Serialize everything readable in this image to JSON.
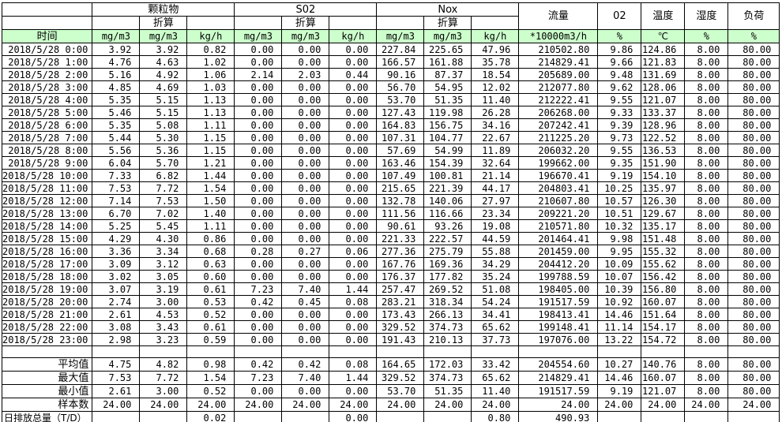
{
  "page": {
    "background_color": "#ffffff",
    "border_color": "#000000",
    "header_fill_color": "#ccffcc"
  },
  "header": {
    "time_label": "时间",
    "groups": [
      {
        "name": "颗粒物",
        "converted_label": "折算",
        "units": [
          "mg/m3",
          "mg/m3",
          "kg/h"
        ]
      },
      {
        "name": "S02",
        "converted_label": "折算",
        "units": [
          "mg/m3",
          "mg/m3",
          "kg/h"
        ]
      },
      {
        "name": "Nox",
        "converted_label": "折算",
        "units": [
          "mg/m3",
          "mg/m3",
          "kg/h"
        ]
      }
    ],
    "singles": [
      {
        "name": "流量",
        "unit": "*10000m3/h"
      },
      {
        "name": "02",
        "unit": "%"
      },
      {
        "name": "温度",
        "unit": "℃"
      },
      {
        "name": "湿度",
        "unit": "%"
      },
      {
        "name": "负荷",
        "unit": "%"
      }
    ]
  },
  "rows": [
    {
      "time": "2018/5/28 0:00",
      "values": [
        "3.92",
        "3.92",
        "0.82",
        "0.00",
        "0.00",
        "0.00",
        "227.84",
        "225.65",
        "47.96",
        "210502.80",
        "9.86",
        "124.86",
        "8.00",
        "80.00"
      ]
    },
    {
      "time": "2018/5/28 1:00",
      "values": [
        "4.76",
        "4.63",
        "1.02",
        "0.00",
        "0.00",
        "0.00",
        "166.57",
        "161.88",
        "35.78",
        "214829.41",
        "9.66",
        "121.83",
        "8.00",
        "80.00"
      ]
    },
    {
      "time": "2018/5/28 2:00",
      "values": [
        "5.16",
        "4.92",
        "1.06",
        "2.14",
        "2.03",
        "0.44",
        "90.16",
        "87.37",
        "18.54",
        "205689.00",
        "9.48",
        "131.69",
        "8.00",
        "80.00"
      ]
    },
    {
      "time": "2018/5/28 3:00",
      "values": [
        "4.85",
        "4.69",
        "1.03",
        "0.00",
        "0.00",
        "0.00",
        "56.70",
        "54.95",
        "12.02",
        "212077.80",
        "9.62",
        "128.06",
        "8.00",
        "80.00"
      ]
    },
    {
      "time": "2018/5/28 4:00",
      "values": [
        "5.35",
        "5.15",
        "1.13",
        "0.00",
        "0.00",
        "0.00",
        "53.70",
        "51.35",
        "11.40",
        "212222.41",
        "9.55",
        "121.07",
        "8.00",
        "80.00"
      ]
    },
    {
      "time": "2018/5/28 5:00",
      "values": [
        "5.46",
        "5.15",
        "1.13",
        "0.00",
        "0.00",
        "0.00",
        "127.43",
        "119.98",
        "26.28",
        "206268.00",
        "9.33",
        "133.37",
        "8.00",
        "80.00"
      ]
    },
    {
      "time": "2018/5/28 6:00",
      "values": [
        "5.35",
        "5.08",
        "1.11",
        "0.00",
        "0.00",
        "0.00",
        "164.83",
        "156.75",
        "34.16",
        "207242.41",
        "9.39",
        "128.96",
        "8.00",
        "80.00"
      ]
    },
    {
      "time": "2018/5/28 7:00",
      "values": [
        "5.44",
        "5.30",
        "1.15",
        "0.00",
        "0.00",
        "0.00",
        "107.31",
        "104.77",
        "22.67",
        "211225.20",
        "9.73",
        "122.52",
        "8.00",
        "80.00"
      ]
    },
    {
      "time": "2018/5/28 8:00",
      "values": [
        "5.56",
        "5.36",
        "1.15",
        "0.00",
        "0.00",
        "0.00",
        "57.69",
        "54.99",
        "11.89",
        "206032.20",
        "9.55",
        "136.53",
        "8.00",
        "80.00"
      ]
    },
    {
      "time": "2018/5/28 9:00",
      "values": [
        "6.04",
        "5.70",
        "1.21",
        "0.00",
        "0.00",
        "0.00",
        "163.46",
        "154.39",
        "32.64",
        "199662.00",
        "9.35",
        "151.90",
        "8.00",
        "80.00"
      ]
    },
    {
      "time": "2018/5/28 10:00",
      "values": [
        "7.33",
        "6.82",
        "1.44",
        "0.00",
        "0.00",
        "0.00",
        "107.49",
        "100.81",
        "21.14",
        "196670.41",
        "9.19",
        "154.10",
        "8.00",
        "80.00"
      ]
    },
    {
      "time": "2018/5/28 11:00",
      "values": [
        "7.53",
        "7.72",
        "1.54",
        "0.00",
        "0.00",
        "0.00",
        "215.65",
        "221.39",
        "44.17",
        "204803.41",
        "10.25",
        "135.97",
        "8.00",
        "80.00"
      ]
    },
    {
      "time": "2018/5/28 12:00",
      "values": [
        "7.14",
        "7.53",
        "1.50",
        "0.00",
        "0.00",
        "0.00",
        "132.78",
        "140.06",
        "27.97",
        "210607.80",
        "10.57",
        "126.30",
        "8.00",
        "80.00"
      ]
    },
    {
      "time": "2018/5/28 13:00",
      "values": [
        "6.70",
        "7.02",
        "1.40",
        "0.00",
        "0.00",
        "0.00",
        "111.56",
        "116.66",
        "23.34",
        "209221.20",
        "10.51",
        "129.67",
        "8.00",
        "80.00"
      ]
    },
    {
      "time": "2018/5/28 14:00",
      "values": [
        "5.25",
        "5.45",
        "1.11",
        "0.00",
        "0.00",
        "0.00",
        "90.61",
        "93.26",
        "19.08",
        "210571.80",
        "10.32",
        "135.17",
        "8.00",
        "80.00"
      ]
    },
    {
      "time": "2018/5/28 15:00",
      "values": [
        "4.29",
        "4.30",
        "0.86",
        "0.00",
        "0.00",
        "0.00",
        "221.33",
        "222.57",
        "44.59",
        "201464.41",
        "9.98",
        "151.48",
        "8.00",
        "80.00"
      ]
    },
    {
      "time": "2018/5/28 16:00",
      "values": [
        "3.36",
        "3.34",
        "0.68",
        "0.28",
        "0.27",
        "0.06",
        "277.36",
        "275.79",
        "55.88",
        "201459.00",
        "9.95",
        "155.32",
        "8.00",
        "80.00"
      ]
    },
    {
      "time": "2018/5/28 17:00",
      "values": [
        "3.09",
        "3.12",
        "0.63",
        "0.00",
        "0.00",
        "0.00",
        "167.76",
        "169.36",
        "34.29",
        "204412.20",
        "10.09",
        "155.62",
        "8.00",
        "80.00"
      ]
    },
    {
      "time": "2018/5/28 18:00",
      "values": [
        "3.02",
        "3.05",
        "0.60",
        "0.00",
        "0.00",
        "0.00",
        "176.37",
        "177.82",
        "35.24",
        "199788.59",
        "10.07",
        "156.42",
        "8.00",
        "80.00"
      ]
    },
    {
      "time": "2018/5/28 19:00",
      "values": [
        "3.07",
        "3.19",
        "0.61",
        "7.23",
        "7.40",
        "1.44",
        "257.47",
        "269.52",
        "51.08",
        "198405.00",
        "10.39",
        "156.80",
        "8.00",
        "80.00"
      ]
    },
    {
      "time": "2018/5/28 20:00",
      "values": [
        "2.74",
        "3.00",
        "0.53",
        "0.42",
        "0.45",
        "0.08",
        "283.21",
        "318.34",
        "54.24",
        "191517.59",
        "10.92",
        "160.07",
        "8.00",
        "80.00"
      ]
    },
    {
      "time": "2018/5/28 21:00",
      "values": [
        "2.61",
        "4.53",
        "0.52",
        "0.00",
        "0.00",
        "0.00",
        "173.43",
        "266.13",
        "34.41",
        "198413.41",
        "14.46",
        "151.64",
        "8.00",
        "80.00"
      ]
    },
    {
      "time": "2018/5/28 22:00",
      "values": [
        "3.08",
        "3.43",
        "0.61",
        "0.00",
        "0.00",
        "0.00",
        "329.52",
        "374.73",
        "65.62",
        "199148.41",
        "11.14",
        "154.17",
        "8.00",
        "80.00"
      ]
    },
    {
      "time": "2018/5/28 23:00",
      "values": [
        "2.98",
        "3.23",
        "0.59",
        "0.00",
        "0.00",
        "0.00",
        "191.43",
        "210.13",
        "37.73",
        "197076.00",
        "13.22",
        "154.72",
        "8.00",
        "80.00"
      ]
    }
  ],
  "summary_rows": [
    {
      "label": "平均值",
      "values": [
        "4.75",
        "4.82",
        "0.98",
        "0.42",
        "0.42",
        "0.08",
        "164.65",
        "172.03",
        "33.42",
        "204554.60",
        "10.27",
        "140.76",
        "8.00",
        "80.00"
      ]
    },
    {
      "label": "最大值",
      "values": [
        "7.53",
        "7.72",
        "1.54",
        "7.23",
        "7.40",
        "1.44",
        "329.52",
        "374.73",
        "65.62",
        "214829.41",
        "14.46",
        "160.07",
        "8.00",
        "80.00"
      ]
    },
    {
      "label": "最小值",
      "values": [
        "2.61",
        "3.00",
        "0.52",
        "0.00",
        "0.00",
        "0.00",
        "53.70",
        "51.35",
        "11.40",
        "191517.59",
        "9.19",
        "121.07",
        "8.00",
        "80.00"
      ]
    },
    {
      "label": "样本数",
      "values": [
        "24.00",
        "24.00",
        "24.00",
        "24.00",
        "24.00",
        "24.00",
        "24.00",
        "24.00",
        "24.00",
        "24.00",
        "24.00",
        "24.00",
        "24.00",
        "24.00"
      ]
    }
  ],
  "total_row": {
    "label": "日排放总量（T/D）",
    "values": [
      "",
      "",
      "0.02",
      "",
      "",
      "0.00",
      "",
      "",
      "0.80",
      "490.93",
      "",
      "",
      "",
      ""
    ]
  }
}
